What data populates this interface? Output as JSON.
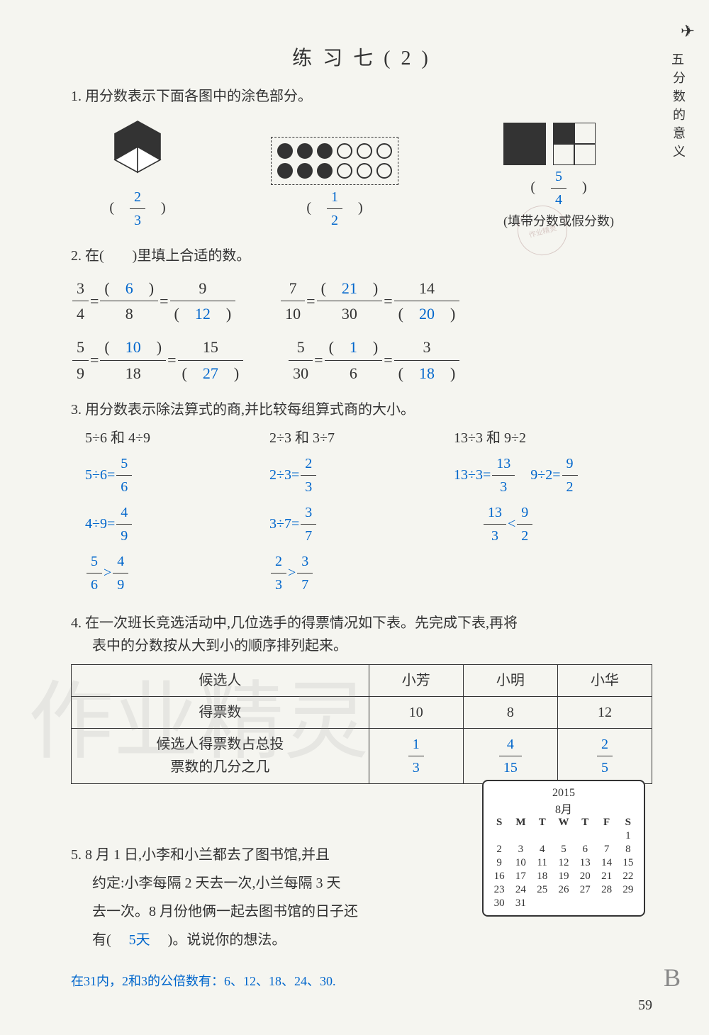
{
  "title": "练 习 七 ( 2 )",
  "side_num": "五",
  "side_label": "分数的意义",
  "page_number": "59",
  "page_letter": "B",
  "q1": {
    "text": "1. 用分数表示下面各图中的涂色部分。",
    "fig1": {
      "num": "2",
      "den": "3"
    },
    "fig2": {
      "num": "1",
      "den": "2"
    },
    "fig3": {
      "num": "5",
      "den": "4"
    },
    "fig3_note": "(填带分数或假分数)"
  },
  "q2": {
    "text": "2. 在(　　)里填上合适的数。",
    "eq1": {
      "a_num": "3",
      "a_den": "4",
      "b_num": "6",
      "b_den": "8",
      "c_num": "9",
      "c_den": "12"
    },
    "eq2": {
      "a_num": "7",
      "a_den": "10",
      "b_num": "21",
      "b_den": "30",
      "c_num": "14",
      "c_den": "20"
    },
    "eq3": {
      "a_num": "5",
      "a_den": "9",
      "b_num": "10",
      "b_den": "18",
      "c_num": "15",
      "c_den": "27"
    },
    "eq4": {
      "a_num": "5",
      "a_den": "30",
      "b_num": "1",
      "b_den": "6",
      "c_num": "3",
      "c_den": "18"
    }
  },
  "q3": {
    "text": "3. 用分数表示除法算式的商,并比较每组算式商的大小。",
    "col1": {
      "header": "5÷6 和 4÷9",
      "line1_lhs": "5÷6=",
      "line1_num": "5",
      "line1_den": "6",
      "line2_lhs": "4÷9=",
      "line2_num": "4",
      "line2_den": "9",
      "cmp_l_num": "5",
      "cmp_l_den": "6",
      "cmp_op": ">",
      "cmp_r_num": "4",
      "cmp_r_den": "9"
    },
    "col2": {
      "header": "2÷3 和 3÷7",
      "line1_lhs": "2÷3=",
      "line1_num": "2",
      "line1_den": "3",
      "line2_lhs": "3÷7=",
      "line2_num": "3",
      "line2_den": "7",
      "cmp_l_num": "2",
      "cmp_l_den": "3",
      "cmp_op": ">",
      "cmp_r_num": "3",
      "cmp_r_den": "7"
    },
    "col3": {
      "header": "13÷3 和 9÷2",
      "line1_lhs": "13÷3=",
      "line1_num": "13",
      "line1_den": "3",
      "line2_lhs": "9÷2=",
      "line2_num": "9",
      "line2_den": "2",
      "cmp_l_num": "13",
      "cmp_l_den": "3",
      "cmp_op": "<",
      "cmp_r_num": "9",
      "cmp_r_den": "2"
    }
  },
  "q4": {
    "text1": "4. 在一次班长竞选活动中,几位选手的得票情况如下表。先完成下表,再将",
    "text2": "表中的分数按从大到小的顺序排列起来。",
    "headers": [
      "候选人",
      "小芳",
      "小明",
      "小华"
    ],
    "row1_label": "得票数",
    "row1": [
      "10",
      "8",
      "12"
    ],
    "row2_label1": "候选人得票数占总投",
    "row2_label2": "票数的几分之几",
    "frac1": {
      "num": "1",
      "den": "3"
    },
    "frac2": {
      "num": "4",
      "den": "15"
    },
    "frac3": {
      "num": "2",
      "den": "5"
    }
  },
  "q5": {
    "line1": "5. 8 月 1 日,小李和小兰都去了图书馆,并且",
    "line2": "约定:小李每隔 2 天去一次,小兰每隔 3 天",
    "line3": "去一次。8 月份他俩一起去图书馆的日子还",
    "line4_a": "有(",
    "line4_answer": "5天",
    "line4_b": ")。说说你的想法。",
    "explanation": "在31内，2和3的公倍数有：6、12、18、24、30.",
    "cal_year": "2015",
    "cal_month": "8月",
    "cal_days": [
      "S",
      "M",
      "T",
      "W",
      "T",
      "F",
      "S"
    ],
    "cal_dates": [
      "",
      "",
      "",
      "",
      "",
      "",
      "1",
      "2",
      "3",
      "4",
      "5",
      "6",
      "7",
      "8",
      "9",
      "10",
      "11",
      "12",
      "13",
      "14",
      "15",
      "16",
      "17",
      "18",
      "19",
      "20",
      "21",
      "22",
      "23",
      "24",
      "25",
      "26",
      "27",
      "28",
      "29",
      "30",
      "31",
      "",
      "",
      "",
      "",
      ""
    ]
  },
  "watermark": "作业精灵",
  "stamp_text": "作业精灵"
}
